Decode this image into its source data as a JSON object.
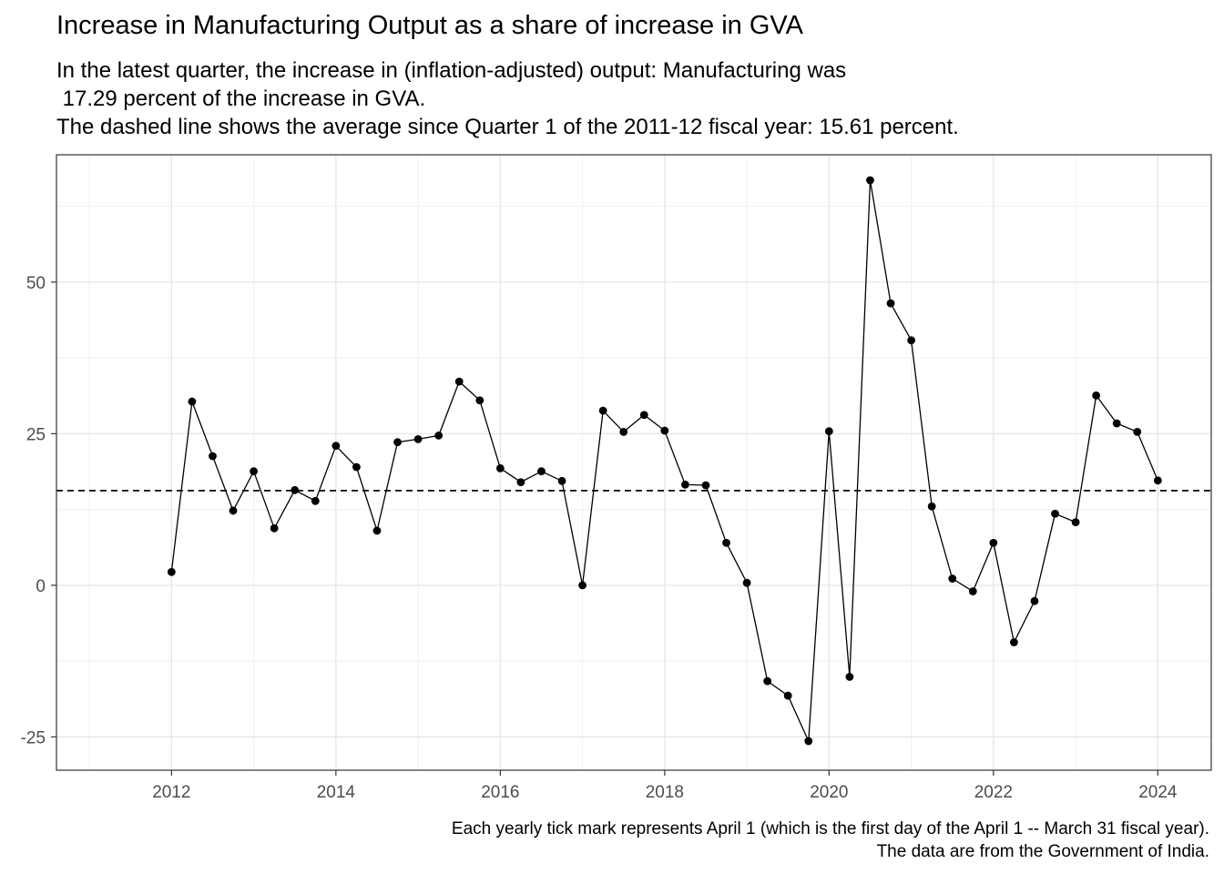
{
  "chart_data": {
    "type": "line",
    "title": "Increase in Manufacturing Output as a share of increase in GVA",
    "subtitle": "In the latest quarter, the increase in (inflation-adjusted) output: Manufacturing was\n 17.29 percent of the increase in GVA.\nThe dashed line shows the average since Quarter 1 of the 2011-12 fiscal year: 15.61 percent.",
    "caption": "Each yearly tick mark represents April 1 (which is the first day of the April 1 -- March 31 fiscal year).\nThe data are from the Government of India.",
    "xlabel": "",
    "ylabel": "",
    "x_ticks": [
      2012,
      2014,
      2016,
      2018,
      2020,
      2022,
      2024
    ],
    "y_ticks": [
      -25,
      0,
      25,
      50
    ],
    "xlim": [
      2010.6,
      2024.65
    ],
    "ylim": [
      -30.5,
      71.0
    ],
    "grid": true,
    "average_line": {
      "value": 15.61,
      "style": "dashed"
    },
    "x": [
      2012.0,
      2012.25,
      2012.5,
      2012.75,
      2013.0,
      2013.25,
      2013.5,
      2013.75,
      2014.0,
      2014.25,
      2014.5,
      2014.75,
      2015.0,
      2015.25,
      2015.5,
      2015.75,
      2016.0,
      2016.25,
      2016.5,
      2016.75,
      2017.0,
      2017.25,
      2017.5,
      2017.75,
      2018.0,
      2018.25,
      2018.5,
      2018.75,
      2019.0,
      2019.25,
      2019.5,
      2019.75,
      2020.0,
      2020.25,
      2020.5,
      2020.75,
      2021.0,
      2021.25,
      2021.5,
      2021.75,
      2022.0,
      2022.25,
      2022.5,
      2022.75,
      2023.0,
      2023.25,
      2023.5,
      2023.75,
      2024.0
    ],
    "series": [
      {
        "values": [
          2.2,
          30.3,
          21.3,
          12.3,
          18.8,
          9.4,
          15.7,
          13.9,
          23.0,
          19.5,
          9.0,
          23.6,
          24.1,
          24.7,
          33.6,
          30.5,
          19.3,
          17.0,
          18.8,
          17.2,
          0.0,
          28.8,
          25.3,
          28.1,
          25.5,
          16.6,
          16.5,
          7.0,
          0.4,
          -15.8,
          -18.2,
          -25.7,
          25.4,
          -15.1,
          66.8,
          46.5,
          40.4,
          13.0,
          1.1,
          -1.0,
          7.0,
          -9.4,
          -2.6,
          11.8,
          10.4,
          31.3,
          26.7,
          25.3,
          17.29
        ]
      }
    ]
  }
}
